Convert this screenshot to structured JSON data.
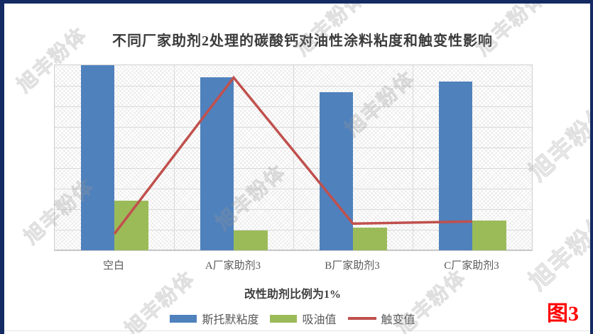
{
  "page": {
    "watermark_text": "旭丰粉体",
    "figure_label": "图3",
    "figure_label_color": "#ff0000",
    "frame_border_color": "#132a63"
  },
  "chart_data": {
    "type": "bar+line",
    "title": "不同厂家助剂2处理的碳酸钙对油性涂料粘度和触变性影响",
    "xlabel": "改性助剂比例为1%",
    "ylabel": "",
    "categories": [
      "空白",
      "A厂家助剂3",
      "B厂家助剂3",
      "C厂家助剂3"
    ],
    "series": [
      {
        "name": "斯托默粘度",
        "type": "bar",
        "color": "#4f81bd",
        "values": [
          90,
          84,
          77,
          82
        ]
      },
      {
        "name": "吸油值",
        "type": "bar",
        "color": "#9bbb59",
        "values": [
          24,
          9.5,
          11,
          14.5
        ]
      },
      {
        "name": "触变值",
        "type": "line",
        "color": "#c0504d",
        "values": [
          8,
          84,
          13,
          14
        ]
      }
    ],
    "ylim": [
      0,
      90
    ],
    "y_gridline_count": 9,
    "y_axis_labels_visible": false,
    "grid": "on",
    "legend_position": "bottom",
    "plot_background": "diagonal-crosshatch"
  }
}
